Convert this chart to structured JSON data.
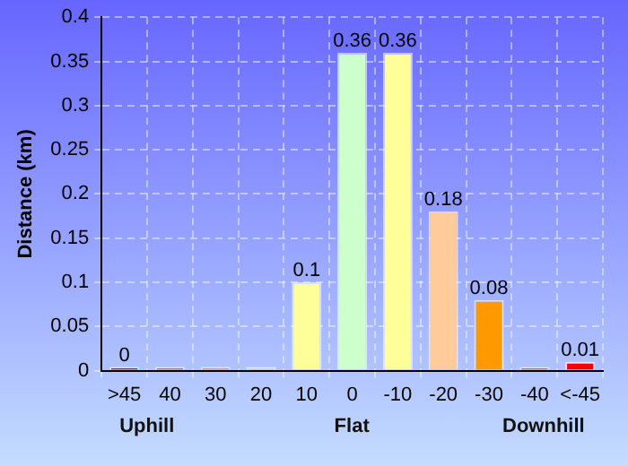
{
  "chart_data": {
    "type": "bar",
    "ylabel": "Distance (km)",
    "categories": [
      ">45",
      "40",
      "30",
      "20",
      "10",
      "0",
      "-10",
      "-20",
      "-30",
      "-40",
      "<-45"
    ],
    "values": [
      0,
      0,
      0,
      0,
      0.1,
      0.36,
      0.36,
      0.18,
      0.08,
      0,
      0.01
    ],
    "value_labels": [
      "0",
      null,
      null,
      null,
      "0.1",
      "0.36",
      "0.36",
      "0.18",
      "0.08",
      null,
      "0.01"
    ],
    "colors": [
      "#ff0000",
      "#ff6600",
      "#ff9900",
      "#ffcc99",
      "#ffff99",
      "#ccffcc",
      "#ffff99",
      "#ffcc99",
      "#ff9900",
      "#ff6600",
      "#ff0000"
    ],
    "ylim": [
      0,
      0.4
    ],
    "yticks": [
      0,
      0.05,
      0.1,
      0.15,
      0.2,
      0.25,
      0.3,
      0.35,
      0.4
    ],
    "grid": true,
    "annotations": [
      "Uphill",
      "Flat",
      "Downhill"
    ]
  }
}
